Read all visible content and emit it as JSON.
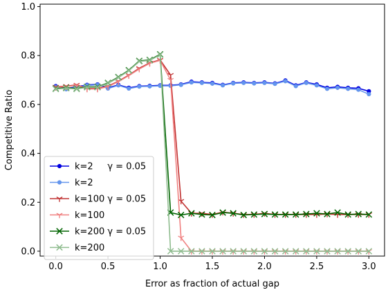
{
  "chart_data": {
    "type": "line",
    "xlabel": "Error as fraction of actual gap",
    "ylabel": "Competitive Ratio",
    "xlim": [
      -0.15,
      3.15
    ],
    "ylim": [
      -0.02,
      1.01
    ],
    "xticks": [
      0.0,
      0.5,
      1.0,
      1.5,
      2.0,
      2.5,
      3.0
    ],
    "xtick_labels": [
      "0.0",
      "0.5",
      "1.0",
      "1.5",
      "2.0",
      "2.5",
      "3.0"
    ],
    "yticks": [
      0.0,
      0.2,
      0.4,
      0.6,
      0.8,
      1.0
    ],
    "ytick_labels": [
      "0.0",
      "0.2",
      "0.4",
      "0.6",
      "0.8",
      "1.0"
    ],
    "grid": false,
    "legend_position": "lower-left",
    "x": [
      0.0,
      0.1,
      0.2,
      0.3,
      0.4,
      0.5,
      0.6,
      0.7,
      0.8,
      0.9,
      1.0,
      1.1,
      1.2,
      1.3,
      1.4,
      1.5,
      1.6,
      1.7,
      1.8,
      1.9,
      2.0,
      2.1,
      2.2,
      2.3,
      2.4,
      2.5,
      2.6,
      2.7,
      2.8,
      2.9,
      3.0
    ],
    "series": [
      {
        "name": "k=2     γ = 0.05",
        "color": "#0000e0",
        "marker": "dot",
        "values": [
          0.675,
          0.665,
          0.672,
          0.68,
          0.682,
          0.668,
          0.68,
          0.668,
          0.675,
          0.676,
          0.678,
          0.678,
          0.682,
          0.693,
          0.69,
          0.688,
          0.68,
          0.688,
          0.69,
          0.688,
          0.69,
          0.686,
          0.698,
          0.678,
          0.69,
          0.682,
          0.668,
          0.672,
          0.668,
          0.666,
          0.654
        ]
      },
      {
        "name": "k=2",
        "color": "#6495ed",
        "marker": "dot",
        "values": [
          0.672,
          0.662,
          0.67,
          0.678,
          0.68,
          0.665,
          0.678,
          0.665,
          0.673,
          0.674,
          0.676,
          0.676,
          0.68,
          0.69,
          0.688,
          0.685,
          0.678,
          0.686,
          0.688,
          0.686,
          0.688,
          0.684,
          0.695,
          0.675,
          0.688,
          0.678,
          0.664,
          0.668,
          0.664,
          0.66,
          0.642
        ]
      },
      {
        "name": "k=100 γ = 0.05",
        "color": "#c03030",
        "marker": "tri",
        "values": [
          0.672,
          0.675,
          0.68,
          0.665,
          0.665,
          0.675,
          0.695,
          0.72,
          0.748,
          0.77,
          0.782,
          0.72,
          0.205,
          0.155,
          0.155,
          0.15,
          0.16,
          0.155,
          0.15,
          0.15,
          0.155,
          0.15,
          0.15,
          0.15,
          0.15,
          0.15,
          0.152,
          0.15,
          0.15,
          0.15,
          0.15
        ]
      },
      {
        "name": "k=100",
        "color": "#f08080",
        "marker": "tri",
        "values": [
          0.67,
          0.673,
          0.678,
          0.663,
          0.663,
          0.673,
          0.693,
          0.718,
          0.745,
          0.768,
          0.78,
          0.7,
          0.055,
          0.0,
          0.0,
          0.0,
          0.0,
          0.0,
          0.0,
          0.0,
          0.0,
          0.0,
          0.0,
          0.0,
          0.0,
          0.0,
          0.0,
          0.0,
          0.0,
          0.0,
          0.0
        ]
      },
      {
        "name": "k=200 γ = 0.05",
        "color": "#006400",
        "marker": "x",
        "values": [
          0.665,
          0.668,
          0.665,
          0.672,
          0.672,
          0.688,
          0.712,
          0.74,
          0.778,
          0.782,
          0.805,
          0.158,
          0.148,
          0.155,
          0.15,
          0.148,
          0.158,
          0.155,
          0.148,
          0.15,
          0.152,
          0.15,
          0.15,
          0.15,
          0.152,
          0.155,
          0.152,
          0.158,
          0.15,
          0.152,
          0.15
        ]
      },
      {
        "name": "k=200",
        "color": "#8fbc8f",
        "marker": "x",
        "values": [
          0.663,
          0.666,
          0.663,
          0.67,
          0.67,
          0.686,
          0.71,
          0.738,
          0.776,
          0.78,
          0.803,
          0.0,
          0.0,
          0.0,
          0.0,
          0.0,
          0.0,
          0.0,
          0.0,
          0.0,
          0.0,
          0.0,
          0.0,
          0.0,
          0.0,
          0.0,
          0.0,
          0.0,
          0.0,
          0.0,
          0.0
        ]
      }
    ]
  }
}
